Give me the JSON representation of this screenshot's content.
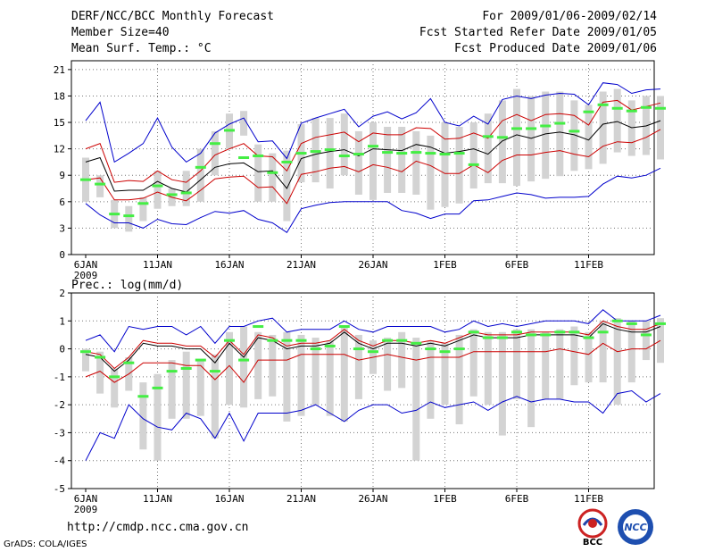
{
  "header": {
    "title": "DERF/NCC/BCC Monthly Forecast",
    "member_size": "Member Size=40",
    "variable": "Mean Surf. Temp.: °C",
    "period": "For 2009/01/06-2009/02/14",
    "fcst_started": "Fcst Started Refer Date 2009/01/05",
    "fcst_produced": "Fcst Produced Date 2009/01/06"
  },
  "footer": {
    "url": "http://cmdp.ncc.cma.gov.cn",
    "credit": "GrADS: COLA/IGES",
    "logo_bcc": "BCC",
    "logo_ncc": "NCC"
  },
  "colors": {
    "spread": "#0000cc",
    "sd": "#cc0000",
    "mean": "#000000",
    "obs_bar": "#d3d3d3",
    "obs_mark": "#44ee44"
  },
  "chart_data": [
    {
      "type": "line",
      "title": "",
      "ylabel": "Mean Surf. Temp.: °C",
      "xlabel": "",
      "ylim": [
        0,
        22
      ],
      "yticks": [
        0,
        3,
        6,
        9,
        12,
        15,
        18,
        21
      ],
      "grid": true,
      "x_start_day": 6,
      "x_tick_labels": [
        "6JAN",
        "11JAN",
        "16JAN",
        "21JAN",
        "26JAN",
        "1FEB",
        "6FEB",
        "11FEB"
      ],
      "x_year_label": "2009",
      "series": [
        {
          "name": "max",
          "values": [
            15.2,
            17.3,
            10.5,
            11.5,
            12.6,
            15.5,
            12.2,
            10.5,
            11.5,
            13.8,
            14.8,
            15.5,
            12.8,
            12.9,
            10.9,
            14.9,
            15.5,
            16,
            16.5,
            14.5,
            15.7,
            16.2,
            15.4,
            16.1,
            17.7,
            15,
            14.6,
            15.7,
            14.8,
            17.6,
            18,
            17.7,
            18.1,
            18.3,
            18.2,
            17,
            19.5,
            19.3,
            18.3,
            18.7,
            18.8
          ]
        },
        {
          "name": "plus_sd",
          "values": [
            12,
            12.6,
            8.2,
            8.4,
            8.3,
            9.5,
            8.5,
            8.2,
            9.5,
            11.3,
            12,
            12.6,
            11.2,
            11.1,
            9.5,
            12.6,
            13.3,
            13.6,
            13.9,
            12.8,
            13.8,
            13.6,
            13.6,
            14.4,
            14.3,
            13.1,
            13.2,
            13.8,
            13.2,
            15.2,
            15.9,
            15.2,
            15.9,
            16,
            15.8,
            14.7,
            17.3,
            17.5,
            16.4,
            16.8,
            17.2
          ]
        },
        {
          "name": "mean",
          "values": [
            10.5,
            11,
            7.2,
            7.3,
            7.3,
            8.3,
            7.5,
            7.1,
            8.5,
            9.9,
            10.3,
            10.4,
            9.4,
            9.5,
            7.5,
            10.9,
            11.4,
            11.7,
            11.9,
            11.2,
            12,
            11.9,
            11.8,
            12.5,
            12.2,
            11.5,
            11.7,
            12,
            11.4,
            12.9,
            13.6,
            13.2,
            13.7,
            13.9,
            13.6,
            13,
            14.8,
            15.1,
            14.4,
            14.6,
            15.2
          ]
        },
        {
          "name": "minus_sd",
          "values": [
            8.5,
            8.7,
            6.2,
            6.2,
            6.4,
            7.1,
            6.5,
            6.1,
            7.3,
            8.6,
            8.8,
            8.9,
            7.6,
            7.7,
            5.8,
            9.1,
            9.4,
            9.8,
            10,
            9.4,
            10.2,
            9.9,
            9.4,
            10.6,
            10.1,
            9.2,
            9.2,
            10.2,
            9.3,
            10.7,
            11.3,
            11.3,
            11.6,
            11.8,
            11.4,
            11.1,
            12.3,
            12.8,
            12.7,
            13.3,
            14.2
          ]
        },
        {
          "name": "min",
          "values": [
            5.8,
            4.5,
            3.6,
            3.6,
            3,
            4,
            3.5,
            3.4,
            4.2,
            4.9,
            4.7,
            5,
            4,
            3.6,
            2.5,
            5.2,
            5.6,
            5.9,
            6,
            6,
            6,
            6,
            5,
            4.7,
            4.1,
            4.6,
            4.6,
            6.1,
            6.2,
            6.6,
            7,
            6.8,
            6.4,
            6.5,
            6.5,
            6.6,
            8,
            8.9,
            8.7,
            9,
            9.8
          ]
        },
        {
          "name": "obs_range_low",
          "values": [
            6,
            6.5,
            3,
            2.6,
            3.8,
            5.2,
            5.5,
            5.5,
            6,
            9,
            12,
            13.5,
            6,
            6,
            3.8,
            8.2,
            8.2,
            7.5,
            9,
            6.8,
            6.2,
            7,
            7,
            6.8,
            5.1,
            5.4,
            5.8,
            7.5,
            8.1,
            8.1,
            7.8,
            8.3,
            8.6,
            8.9,
            9.5,
            9.7,
            10.3,
            11.6,
            11.2,
            11.3,
            10.8
          ]
        },
        {
          "name": "obs_range_high",
          "values": [
            11,
            9,
            6.2,
            5.5,
            6.5,
            9.5,
            7.5,
            9.5,
            12,
            14,
            16,
            16.3,
            12.5,
            11.5,
            11.8,
            14.8,
            15.5,
            15.5,
            16,
            14,
            15,
            14.5,
            14.5,
            14,
            13.5,
            15,
            14.5,
            15,
            16,
            17.5,
            18.8,
            18,
            18.5,
            18.5,
            17.5,
            17,
            18.5,
            18.8,
            17.5,
            18,
            18
          ]
        },
        {
          "name": "obs_mark",
          "values": [
            8.5,
            8,
            4.6,
            4.4,
            5.8,
            7.8,
            6.8,
            7,
            9.9,
            12.6,
            14.1,
            11,
            11.2,
            9.3,
            10.5,
            11.5,
            11.7,
            11.9,
            11.2,
            11.4,
            12.3,
            11.6,
            11.5,
            11.6,
            11.5,
            11.4,
            11.5,
            10.2,
            13.4,
            13.3,
            14.3,
            14.3,
            14.6,
            14.9,
            14,
            16.2,
            17,
            16.6,
            16.3,
            16.7,
            16.6
          ]
        }
      ]
    },
    {
      "type": "line",
      "title": "",
      "ylabel": "Prec.: log(mm/d)",
      "xlabel": "",
      "ylim": [
        -5,
        2
      ],
      "yticks": [
        -5,
        -4,
        -3,
        -2,
        -1,
        0,
        1,
        2
      ],
      "grid": true,
      "x_start_day": 6,
      "x_tick_labels": [
        "6JAN",
        "11JAN",
        "16JAN",
        "21JAN",
        "26JAN",
        "1FEB",
        "6FEB",
        "11FEB"
      ],
      "x_year_label": "2009",
      "series": [
        {
          "name": "max",
          "values": [
            0.3,
            0.5,
            -0.1,
            0.8,
            0.7,
            0.8,
            0.8,
            0.5,
            0.8,
            0.2,
            0.8,
            0.8,
            1.0,
            1.1,
            0.6,
            0.7,
            0.7,
            0.7,
            1.0,
            0.7,
            0.6,
            0.8,
            0.8,
            0.8,
            0.8,
            0.6,
            0.7,
            1.0,
            0.8,
            0.9,
            0.8,
            0.9,
            1.0,
            1.0,
            1.0,
            0.9,
            1.4,
            1.0,
            1.0,
            1.0,
            1.2
          ]
        },
        {
          "name": "plus_sd",
          "values": [
            -0.1,
            -0.2,
            -0.7,
            -0.3,
            0.3,
            0.2,
            0.2,
            0.1,
            0.1,
            -0.3,
            0.3,
            -0.2,
            0.5,
            0.4,
            0.1,
            0.2,
            0.2,
            0.3,
            0.7,
            0.3,
            0.1,
            0.3,
            0.3,
            0.2,
            0.3,
            0.2,
            0.4,
            0.6,
            0.5,
            0.5,
            0.5,
            0.6,
            0.6,
            0.6,
            0.6,
            0.5,
            1.0,
            0.8,
            0.7,
            0.7,
            0.9
          ]
        },
        {
          "name": "mean",
          "values": [
            -0.2,
            -0.3,
            -0.8,
            -0.4,
            0.2,
            0.1,
            0.1,
            0.0,
            0.0,
            -0.5,
            0.2,
            -0.3,
            0.4,
            0.3,
            0.0,
            0.1,
            0.1,
            0.2,
            0.6,
            0.2,
            0.0,
            0.2,
            0.2,
            0.1,
            0.2,
            0.1,
            0.3,
            0.5,
            0.4,
            0.4,
            0.4,
            0.5,
            0.5,
            0.5,
            0.5,
            0.4,
            0.9,
            0.7,
            0.6,
            0.6,
            0.8
          ]
        },
        {
          "name": "minus_sd",
          "values": [
            -1.0,
            -0.8,
            -1.2,
            -0.9,
            -0.5,
            -0.5,
            -0.5,
            -0.6,
            -0.6,
            -1.1,
            -0.6,
            -1.2,
            -0.4,
            -0.4,
            -0.4,
            -0.2,
            -0.2,
            -0.2,
            -0.2,
            -0.4,
            -0.3,
            -0.2,
            -0.3,
            -0.4,
            -0.3,
            -0.3,
            -0.3,
            -0.1,
            -0.1,
            -0.1,
            -0.1,
            -0.1,
            -0.1,
            0.0,
            -0.1,
            -0.2,
            0.2,
            -0.1,
            0.0,
            0.0,
            0.3
          ]
        },
        {
          "name": "min",
          "values": [
            -4.0,
            -3.0,
            -3.2,
            -2.0,
            -2.5,
            -2.8,
            -2.9,
            -2.3,
            -2.5,
            -3.2,
            -2.3,
            -3.3,
            -2.3,
            -2.3,
            -2.3,
            -2.2,
            -2.0,
            -2.3,
            -2.6,
            -2.2,
            -2.0,
            -2.0,
            -2.3,
            -2.2,
            -1.9,
            -2.1,
            -2.0,
            -1.9,
            -2.2,
            -1.9,
            -1.7,
            -1.9,
            -1.8,
            -1.8,
            -1.9,
            -1.9,
            -2.3,
            -1.6,
            -1.5,
            -1.9,
            -1.6
          ]
        },
        {
          "name": "obs_range_low",
          "values": [
            -0.8,
            -1.6,
            -2.1,
            -1.5,
            -3.6,
            -4.0,
            -2.5,
            -2.5,
            -2.4,
            -3.2,
            -2.0,
            -2.1,
            -1.8,
            -1.7,
            -2.6,
            -2.4,
            -2.0,
            -2.4,
            -2.6,
            -1.8,
            -0.9,
            -1.5,
            -1.4,
            -4.0,
            -2.5,
            -2.0,
            -2.7,
            -1.7,
            -2.0,
            -3.1,
            -1.8,
            -2.8,
            -1.8,
            -1.8,
            -1.3,
            -1.2,
            -1.2,
            -2.0,
            -1.2,
            -0.4,
            -0.5
          ]
        },
        {
          "name": "obs_range_high",
          "values": [
            0.0,
            -0.1,
            -0.7,
            -0.3,
            -1.2,
            -0.9,
            -0.4,
            -0.1,
            -0.4,
            -0.2,
            0.6,
            0.8,
            0.6,
            0.5,
            0.6,
            0.5,
            0.4,
            0.3,
            0.8,
            0.5,
            0.3,
            0.4,
            0.6,
            0.4,
            0.3,
            0.2,
            0.5,
            0.7,
            0.6,
            0.6,
            0.7,
            0.7,
            0.6,
            0.7,
            0.8,
            0.6,
            1.0,
            1.1,
            1.0,
            1.0,
            1.1
          ]
        },
        {
          "name": "obs_mark",
          "values": [
            -0.1,
            -0.3,
            -1.0,
            -0.5,
            -1.7,
            -1.4,
            -0.8,
            -0.7,
            -0.4,
            -0.8,
            0.3,
            -0.4,
            0.8,
            0.3,
            0.3,
            0.3,
            0.0,
            0.1,
            0.8,
            0.0,
            -0.1,
            0.3,
            0.3,
            0.2,
            0.0,
            -0.1,
            0.0,
            0.6,
            0.4,
            0.4,
            0.6,
            0.5,
            0.5,
            0.6,
            0.6,
            0.4,
            0.6,
            1.0,
            0.9,
            0.5,
            0.9
          ]
        }
      ]
    }
  ]
}
